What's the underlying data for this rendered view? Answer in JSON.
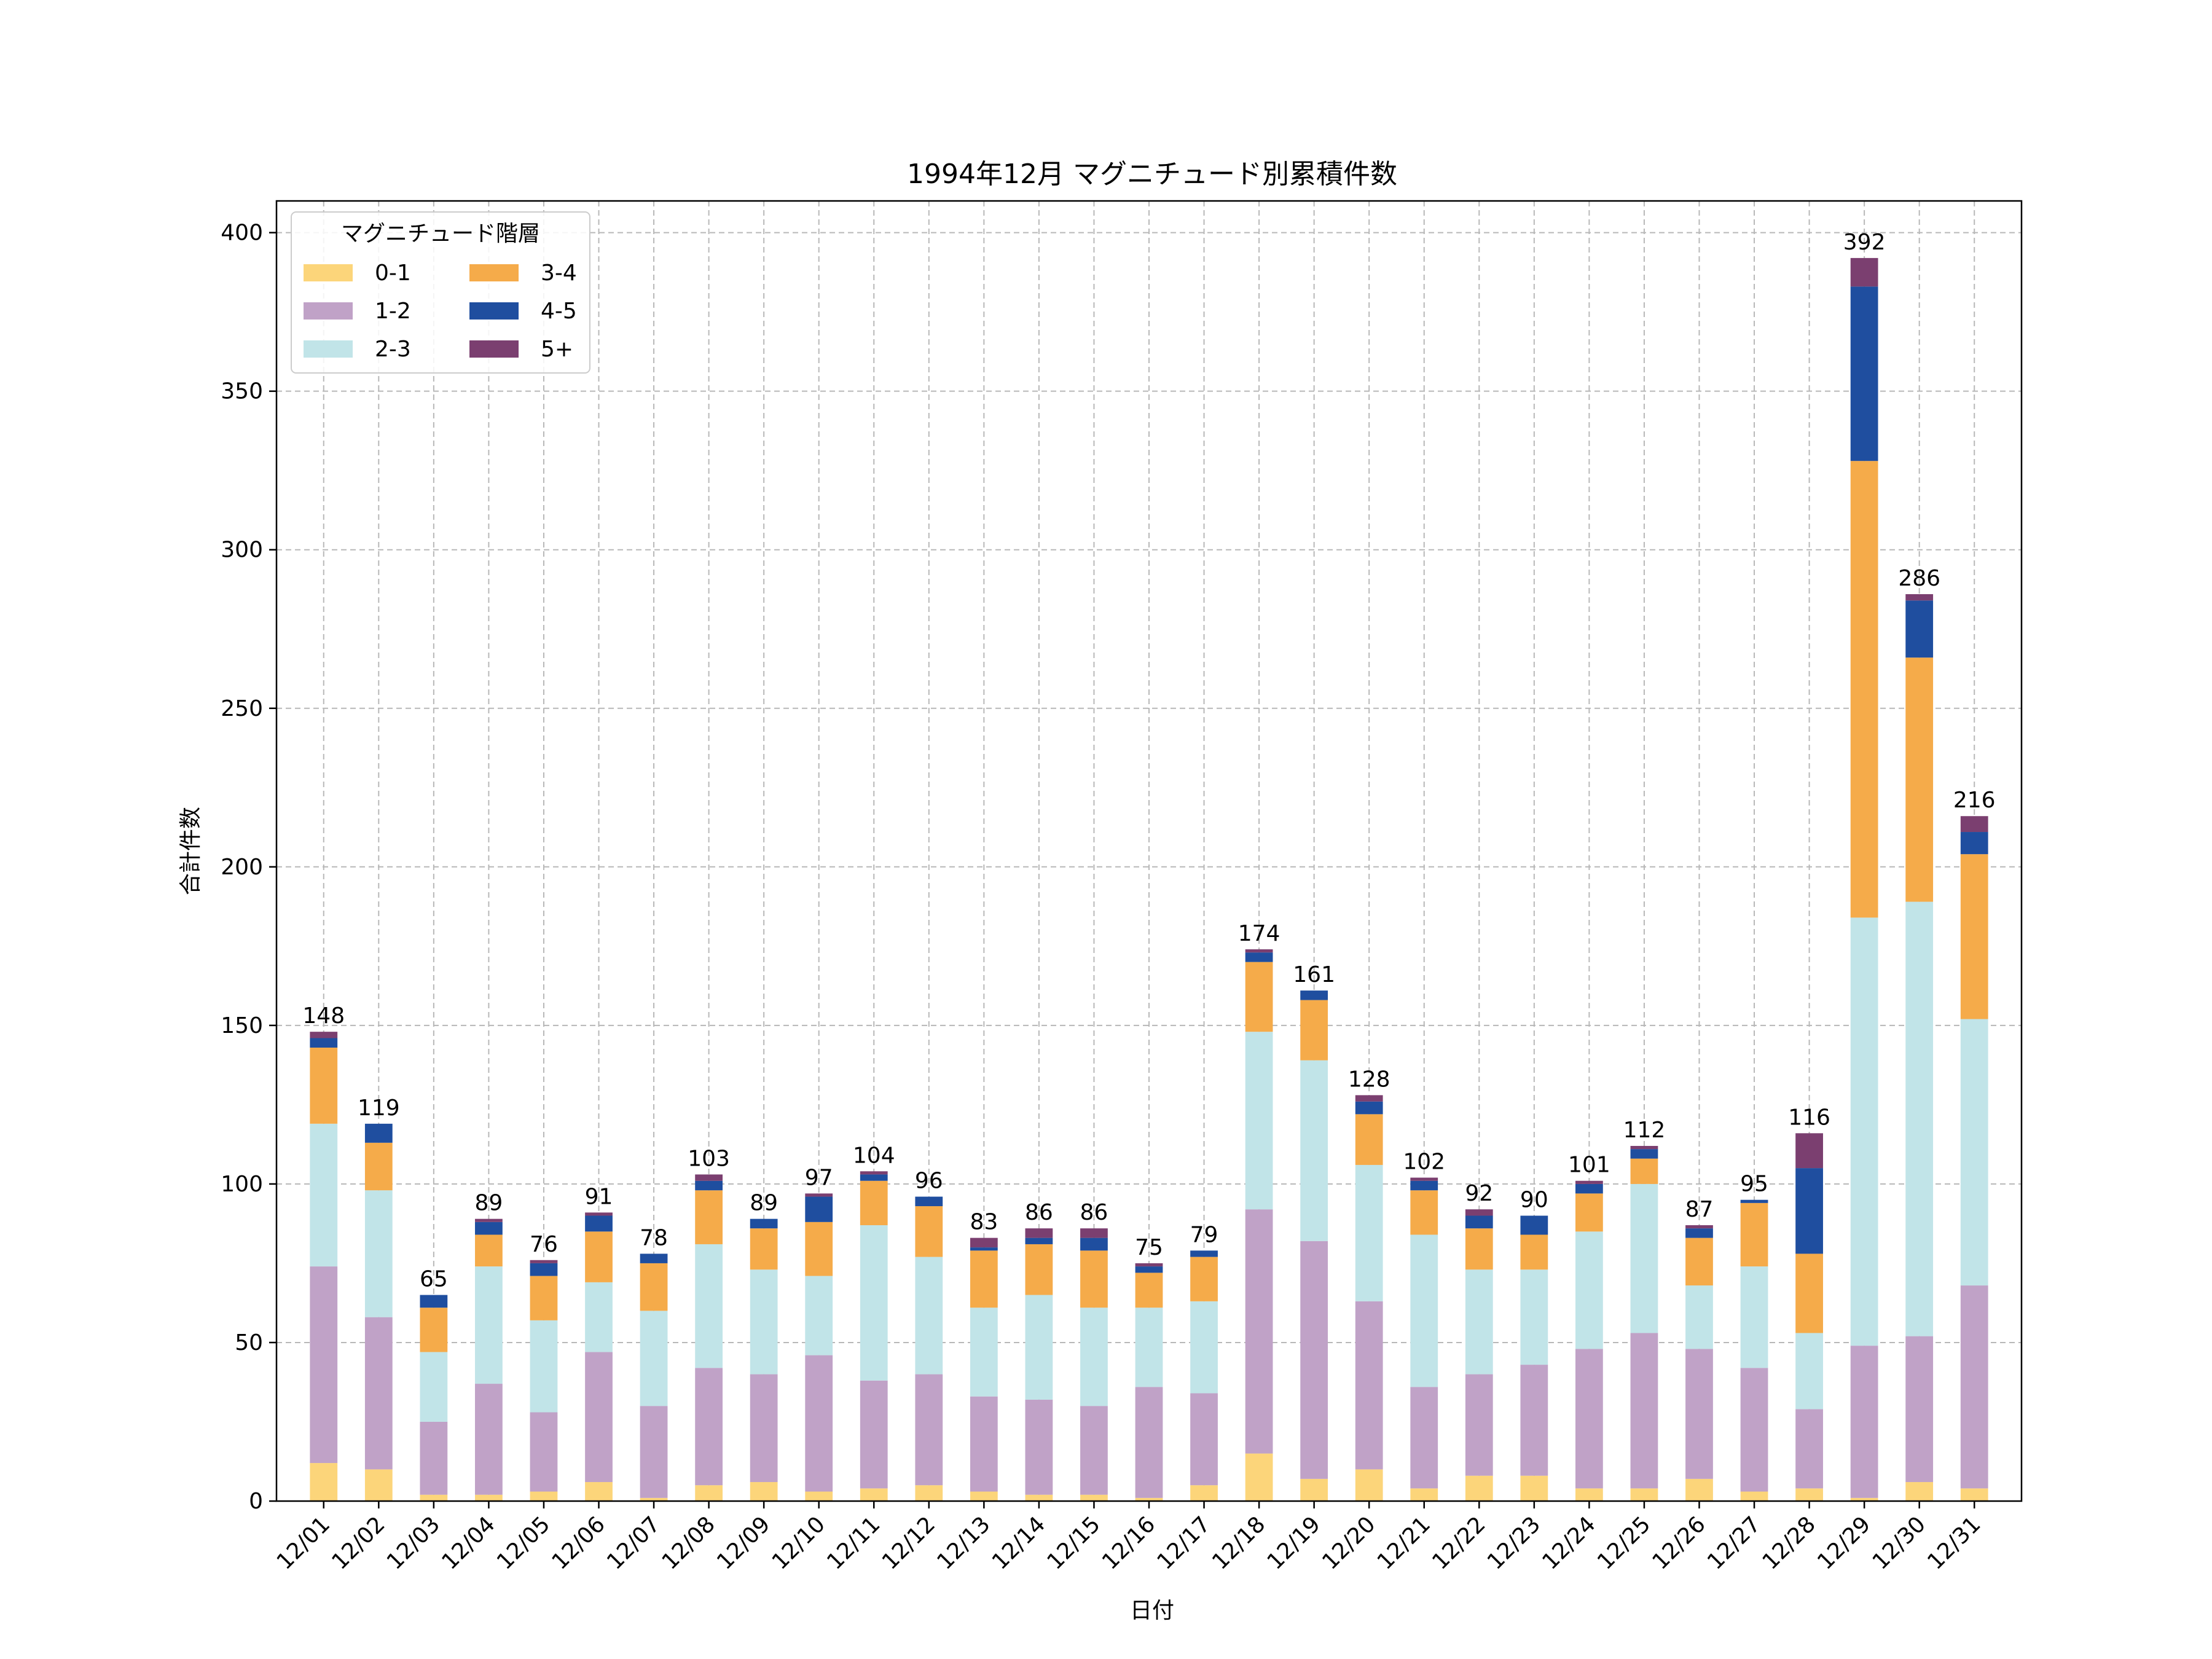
{
  "chart_data": {
    "type": "bar",
    "stacked": true,
    "title": "1994年12月 マグニチュード別累積件数",
    "xlabel": "日付",
    "ylabel": "合計件数",
    "ylim": [
      0,
      410
    ],
    "yticks": [
      0,
      50,
      100,
      150,
      200,
      250,
      300,
      350,
      400
    ],
    "grid": true,
    "legend": {
      "title": "マグニチュード階層",
      "placement": "top-left",
      "columns": 2
    },
    "categories": [
      "12/01",
      "12/02",
      "12/03",
      "12/04",
      "12/05",
      "12/06",
      "12/07",
      "12/08",
      "12/09",
      "12/10",
      "12/11",
      "12/12",
      "12/13",
      "12/14",
      "12/15",
      "12/16",
      "12/17",
      "12/18",
      "12/19",
      "12/20",
      "12/21",
      "12/22",
      "12/23",
      "12/24",
      "12/25",
      "12/26",
      "12/27",
      "12/28",
      "12/29",
      "12/30",
      "12/31"
    ],
    "series": [
      {
        "name": "0-1",
        "color": "#fcd57a",
        "values": [
          12,
          10,
          2,
          2,
          3,
          6,
          1,
          5,
          6,
          3,
          4,
          5,
          3,
          2,
          2,
          1,
          5,
          15,
          7,
          10,
          4,
          8,
          8,
          4,
          4,
          7,
          3,
          4,
          1,
          6,
          4
        ]
      },
      {
        "name": "1-2",
        "color": "#c0a2c7",
        "values": [
          62,
          48,
          23,
          35,
          25,
          41,
          29,
          37,
          34,
          43,
          34,
          35,
          30,
          30,
          28,
          35,
          29,
          77,
          75,
          53,
          32,
          32,
          35,
          44,
          49,
          41,
          39,
          25,
          48,
          46,
          64
        ]
      },
      {
        "name": "2-3",
        "color": "#c1e4e8",
        "values": [
          45,
          40,
          22,
          37,
          29,
          22,
          30,
          39,
          33,
          25,
          49,
          37,
          28,
          33,
          31,
          25,
          29,
          56,
          57,
          43,
          48,
          33,
          30,
          37,
          47,
          20,
          32,
          24,
          135,
          137,
          84
        ]
      },
      {
        "name": "3-4",
        "color": "#f5ab4a",
        "values": [
          24,
          15,
          14,
          10,
          14,
          16,
          15,
          17,
          13,
          17,
          14,
          16,
          18,
          16,
          18,
          11,
          14,
          22,
          19,
          16,
          14,
          13,
          11,
          12,
          8,
          15,
          20,
          25,
          144,
          77,
          52
        ]
      },
      {
        "name": "4-5",
        "color": "#1f4e9f",
        "values": [
          3,
          6,
          4,
          4,
          4,
          5,
          3,
          3,
          3,
          8,
          2,
          3,
          1,
          2,
          4,
          2,
          2,
          3,
          3,
          4,
          3,
          4,
          6,
          3,
          3,
          3,
          1,
          27,
          55,
          18,
          7
        ]
      },
      {
        "name": "5+",
        "color": "#7b3f70",
        "values": [
          2,
          0,
          0,
          1,
          1,
          1,
          0,
          2,
          0,
          1,
          1,
          0,
          3,
          3,
          3,
          1,
          0,
          1,
          0,
          2,
          1,
          2,
          0,
          1,
          1,
          1,
          0,
          11,
          9,
          2,
          5
        ]
      }
    ],
    "totals": [
      148,
      119,
      65,
      89,
      76,
      91,
      78,
      103,
      89,
      97,
      104,
      96,
      83,
      86,
      86,
      75,
      79,
      174,
      161,
      128,
      102,
      92,
      90,
      101,
      112,
      87,
      95,
      116,
      392,
      286,
      216
    ]
  }
}
